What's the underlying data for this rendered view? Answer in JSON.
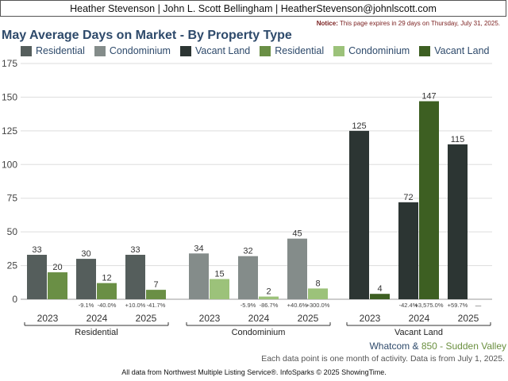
{
  "header": {
    "agents": "Heather Stevenson | John L. Scott Bellingham | HeatherStevenson@johnlscott.com",
    "notice_label": "Notice:",
    "notice_text": "This page expires in 29 days on Thursday, July 31, 2025."
  },
  "footer": {
    "region_a": "Whatcom",
    "region_amp": " & ",
    "region_b": "850 - Sudden Valley",
    "note": "Each data point is one month of activity. Data is from July 1, 2025.",
    "source": "All data from Northwest Multiple Listing Service®. InfoSparks © 2025 ShowingTime."
  },
  "chart_data": {
    "type": "bar",
    "title": "May Average Days on Market - By Property Type",
    "ylim": [
      0,
      175
    ],
    "yticks": [
      0,
      25,
      50,
      75,
      100,
      125,
      150,
      175
    ],
    "grid": true,
    "legend_placement": "top",
    "legend": [
      {
        "label": "Residential",
        "color": "#555e5c"
      },
      {
        "label": "Condominium",
        "color": "#848c8a"
      },
      {
        "label": "Vacant Land",
        "color": "#2c3533"
      },
      {
        "label": "Residential",
        "color": "#6a8f45"
      },
      {
        "label": "Condominium",
        "color": "#9cc27a"
      },
      {
        "label": "Vacant Land",
        "color": "#3d5f22"
      }
    ],
    "groups": [
      {
        "name": "Residential",
        "years": [
          {
            "year": "2023",
            "a": 33,
            "b": 20,
            "a_change": "",
            "b_change": ""
          },
          {
            "year": "2024",
            "a": 30,
            "b": 12,
            "a_change": "-9.1%",
            "b_change": "-40.0%"
          },
          {
            "year": "2025",
            "a": 33,
            "b": 7,
            "a_change": "+10.0%",
            "b_change": "-41.7%"
          }
        ],
        "colors": [
          "#555e5c",
          "#6a8f45"
        ]
      },
      {
        "name": "Condominium",
        "years": [
          {
            "year": "2023",
            "a": 34,
            "b": 15,
            "a_change": "",
            "b_change": ""
          },
          {
            "year": "2024",
            "a": 32,
            "b": 2,
            "a_change": "-5.9%",
            "b_change": "-86.7%"
          },
          {
            "year": "2025",
            "a": 45,
            "b": 8,
            "a_change": "+40.6%",
            "b_change": "+300.0%"
          }
        ],
        "colors": [
          "#848c8a",
          "#9cc27a"
        ]
      },
      {
        "name": "Vacant Land",
        "years": [
          {
            "year": "2023",
            "a": 125,
            "b": 4,
            "a_change": "",
            "b_change": ""
          },
          {
            "year": "2024",
            "a": 72,
            "b": 147,
            "a_change": "-42.4%",
            "b_change": "+3,575.0%"
          },
          {
            "year": "2025",
            "a": 115,
            "b": null,
            "a_change": "+59.7%",
            "b_change": "—"
          }
        ],
        "colors": [
          "#2c3533",
          "#3d5f22"
        ]
      }
    ]
  }
}
